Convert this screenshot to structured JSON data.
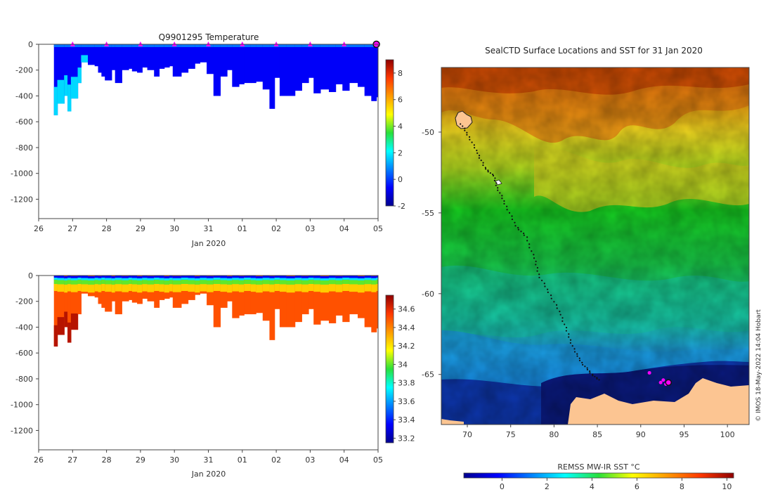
{
  "chart_data": [
    {
      "id": "temperature",
      "type": "heatmap",
      "title": "Q9901295  Temperature",
      "xlabel": "Jan 2020",
      "ylabel": "",
      "x_ticks": [
        "26",
        "27",
        "28",
        "29",
        "30",
        "31",
        "01",
        "02",
        "03",
        "04",
        "05"
      ],
      "x_range_days": [
        26,
        36
      ],
      "y_ticks": [
        0,
        -200,
        -400,
        -600,
        -800,
        -1000,
        -1200
      ],
      "ylim": [
        -1350,
        0
      ],
      "colorbar": {
        "min": -2,
        "max": 9,
        "ticks": [
          -2,
          0,
          2,
          4,
          6,
          8
        ]
      },
      "profile_times": [
        26.45,
        26.55,
        26.75,
        26.85,
        26.95,
        27.15,
        27.25,
        27.45,
        27.65,
        27.75,
        27.85,
        27.95,
        28.15,
        28.25,
        28.45,
        28.65,
        28.75,
        28.9,
        29.05,
        29.2,
        29.4,
        29.55,
        29.7,
        29.85,
        29.95,
        30.2,
        30.4,
        30.6,
        30.75,
        30.95,
        31.15,
        31.35,
        31.55,
        31.7,
        31.9,
        32.05,
        32.25,
        32.4,
        32.6,
        32.8,
        32.95,
        33.1,
        33.3,
        33.55,
        33.75,
        33.95,
        34.1,
        34.3,
        34.55,
        34.75,
        34.95,
        35.15,
        35.4,
        35.6,
        35.8,
        35.95
      ],
      "profile_depths": [
        550,
        460,
        400,
        520,
        420,
        300,
        140,
        160,
        170,
        220,
        250,
        280,
        200,
        300,
        200,
        190,
        210,
        220,
        180,
        200,
        250,
        190,
        180,
        170,
        250,
        220,
        190,
        150,
        140,
        230,
        400,
        250,
        200,
        330,
        310,
        300,
        300,
        290,
        350,
        500,
        260,
        400,
        400,
        360,
        300,
        260,
        380,
        350,
        370,
        310,
        360,
        300,
        330,
        400,
        440,
        410
      ],
      "markers": [
        27,
        28,
        29,
        30,
        31,
        32,
        33,
        34,
        35
      ],
      "end_marker": 35.95
    },
    {
      "id": "salinity",
      "type": "heatmap",
      "title": "",
      "xlabel": "Jan 2020",
      "ylabel": "",
      "x_ticks": [
        "26",
        "27",
        "28",
        "29",
        "30",
        "31",
        "01",
        "02",
        "03",
        "04",
        "05"
      ],
      "x_range_days": [
        26,
        36
      ],
      "y_ticks": [
        0,
        -200,
        -400,
        -600,
        -800,
        -1000,
        -1200
      ],
      "ylim": [
        -1350,
        0
      ],
      "colorbar": {
        "min": 33.15,
        "max": 34.75,
        "ticks": [
          33.2,
          33.4,
          33.6,
          33.8,
          34,
          34.2,
          34.4,
          34.6
        ]
      }
    },
    {
      "id": "sst-map",
      "type": "heatmap",
      "title": "SealCTD Surface Locations and SST for 31 Jan 2020",
      "xlabel": "",
      "ylabel": "",
      "x_ticks": [
        70,
        75,
        80,
        85,
        90,
        95,
        100
      ],
      "y_ticks": [
        -50,
        -55,
        -60,
        -65
      ],
      "lon_range": [
        67,
        102.5
      ],
      "lat_range": [
        -68.1,
        -46
      ],
      "track": [
        [
          69.3,
          -49.5
        ],
        [
          70.2,
          -50.3
        ],
        [
          71.2,
          -51.3
        ],
        [
          72.0,
          -52.2
        ],
        [
          73.0,
          -52.7
        ],
        [
          73.6,
          -53.6
        ],
        [
          74.5,
          -54.6
        ],
        [
          75.6,
          -55.8
        ],
        [
          76.8,
          -56.5
        ],
        [
          77.7,
          -57.8
        ],
        [
          78.4,
          -59.0
        ],
        [
          79.6,
          -60.1
        ],
        [
          80.8,
          -61.3
        ],
        [
          81.6,
          -62.5
        ],
        [
          82.4,
          -63.6
        ],
        [
          83.4,
          -64.4
        ],
        [
          84.4,
          -65.0
        ],
        [
          85.3,
          -65.4
        ]
      ],
      "surface_points": [
        [
          91.0,
          -64.9
        ],
        [
          92.3,
          -65.5
        ],
        [
          92.6,
          -65.35
        ],
        [
          92.9,
          -65.6
        ]
      ],
      "last_location": [
        93.2,
        -65.5
      ],
      "colorbar": {
        "label": "REMSS MW-IR SST °C",
        "min": -1.7,
        "max": 10.3,
        "ticks": [
          0,
          2,
          4,
          6,
          8,
          10
        ]
      },
      "credit": "© IMOS 18-May-2022 14:04 Hobart"
    }
  ],
  "colors": {
    "land": "#fcc592",
    "marker": "#ff00ff",
    "axis": "#444444"
  }
}
